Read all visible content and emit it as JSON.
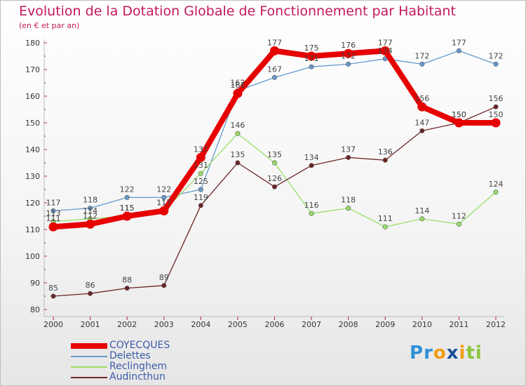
{
  "chart_data": {
    "type": "line",
    "title": "Evolution de la Dotation Globale de Fonctionnement par Habitant",
    "subtitle": "(en € et par an)",
    "xlabel": "",
    "ylabel": "",
    "x": [
      "2000",
      "2001",
      "2002",
      "2003",
      "2004",
      "2005",
      "2006",
      "2007",
      "2008",
      "2009",
      "2010",
      "2011",
      "2012"
    ],
    "ylim": [
      80,
      180
    ],
    "yticks": [
      80,
      90,
      100,
      110,
      120,
      130,
      140,
      150,
      160,
      170,
      180
    ],
    "grid": false,
    "legend_position": "bottom-left",
    "series": [
      {
        "name": "COYECQUES",
        "color": "#e60000",
        "values": [
          111,
          112,
          115,
          117,
          137,
          161,
          177,
          175,
          176,
          177,
          156,
          150,
          150
        ]
      },
      {
        "name": "Delettes",
        "color": "#6699cc",
        "values": [
          117,
          118,
          122,
          122,
          125,
          162,
          167,
          171,
          172,
          174,
          172,
          177,
          172
        ]
      },
      {
        "name": "Reclinghem",
        "color": "#99dd66",
        "values": [
          113,
          114,
          115,
          117,
          131,
          146,
          135,
          116,
          118,
          111,
          114,
          112,
          124
        ]
      },
      {
        "name": "Audincthun",
        "color": "#6b2424",
        "values": [
          85,
          86,
          88,
          89,
          119,
          135,
          126,
          134,
          137,
          136,
          147,
          150,
          156
        ]
      }
    ]
  },
  "logo": {
    "text": "Proxiti",
    "letters": [
      "P",
      "r",
      "o",
      "x",
      "i",
      "t",
      "i"
    ],
    "colors": [
      "#2f8fd8",
      "#2f8fd8",
      "#f39c12",
      "#1a4f9c",
      "#f39c12",
      "#8cc63f",
      "#8cc63f"
    ]
  }
}
